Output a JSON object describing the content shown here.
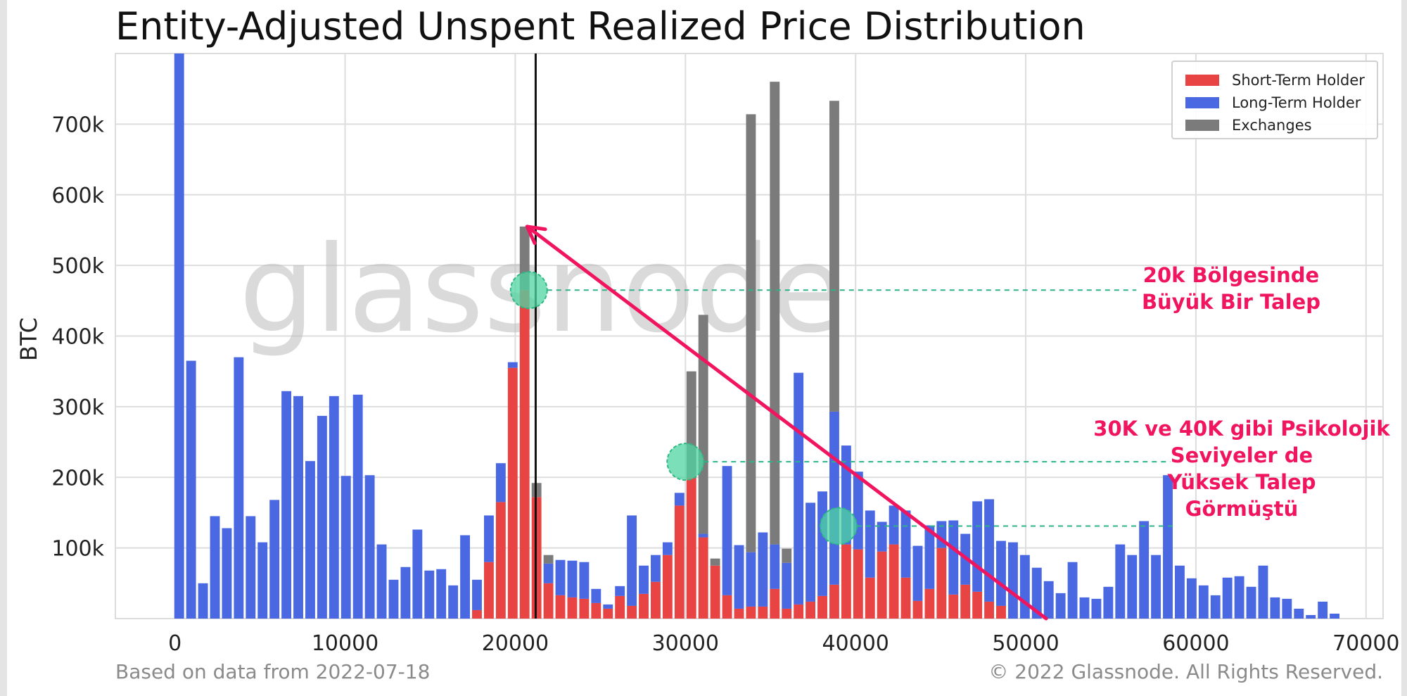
{
  "chart_data": {
    "type": "bar",
    "title": "Entity-Adjusted Unspent Realized Price Distribution",
    "xlabel": "",
    "ylabel": "BTC",
    "xlim": [
      -3500,
      71000
    ],
    "ylim": [
      0,
      800000
    ],
    "x_ticks": [
      0,
      10000,
      20000,
      30000,
      40000,
      50000,
      60000,
      70000
    ],
    "x_tick_labels": [
      "0",
      "10000",
      "20000",
      "30000",
      "40000",
      "50000",
      "60000",
      "70000"
    ],
    "y_ticks": [
      100000,
      200000,
      300000,
      400000,
      500000,
      600000,
      700000
    ],
    "y_tick_labels": [
      "100k",
      "200k",
      "300k",
      "400k",
      "500k",
      "600k",
      "700k"
    ],
    "grid": true,
    "bin_width": 700,
    "x": [
      250,
      950,
      1650,
      2350,
      3050,
      3750,
      4450,
      5150,
      5850,
      6550,
      7250,
      7950,
      8650,
      9350,
      10050,
      10750,
      11450,
      12150,
      12850,
      13550,
      14250,
      14950,
      15650,
      16350,
      17050,
      17750,
      18450,
      19150,
      19850,
      20550,
      21250,
      21950,
      22650,
      23350,
      24050,
      24750,
      25450,
      26150,
      26850,
      27550,
      28250,
      28950,
      29650,
      30350,
      31050,
      31750,
      32450,
      33150,
      33850,
      34550,
      35250,
      35950,
      36650,
      37350,
      38050,
      38750,
      39450,
      40150,
      40850,
      41550,
      42250,
      42950,
      43650,
      44350,
      45050,
      45750,
      46450,
      47150,
      47850,
      48550,
      49250,
      49950,
      50650,
      51350,
      52050,
      52750,
      53450,
      54150,
      54850,
      55550,
      56250,
      56950,
      57650,
      58350,
      59050,
      59750,
      60450,
      61150,
      61850,
      62550,
      63250,
      63950,
      64650,
      65350,
      66050,
      66750,
      67450,
      68150
    ],
    "series": [
      {
        "name": "Short-Term Holder",
        "color": "#e84444",
        "values": [
          0,
          0,
          0,
          0,
          0,
          0,
          0,
          0,
          0,
          0,
          0,
          0,
          0,
          0,
          0,
          0,
          0,
          0,
          0,
          0,
          0,
          0,
          0,
          0,
          0,
          12000,
          80000,
          165000,
          355000,
          465000,
          172000,
          50000,
          33000,
          30000,
          28000,
          22000,
          14000,
          32000,
          18000,
          35000,
          52000,
          90000,
          160000,
          200000,
          115000,
          75000,
          33000,
          14000,
          17000,
          17000,
          42000,
          14000,
          20000,
          24000,
          32000,
          48000,
          105000,
          98000,
          58000,
          95000,
          105000,
          58000,
          25000,
          42000,
          100000,
          34000,
          48000,
          38000,
          24000,
          18000,
          0,
          0,
          0,
          0,
          0,
          0,
          0,
          0,
          0,
          0,
          0,
          0,
          0,
          0,
          0,
          0,
          0,
          0,
          0,
          0,
          0,
          0,
          0,
          0,
          0,
          0,
          0,
          0
        ]
      },
      {
        "name": "Long-Term Holder",
        "color": "#4a68e2",
        "values": [
          800000,
          365000,
          50000,
          145000,
          128000,
          370000,
          145000,
          108000,
          168000,
          322000,
          315000,
          223000,
          287000,
          315000,
          202000,
          317000,
          203000,
          105000,
          55000,
          73000,
          126000,
          68000,
          70000,
          47000,
          118000,
          43000,
          66000,
          55000,
          8000,
          -8000,
          0,
          28000,
          50000,
          52000,
          52000,
          20000,
          6000,
          14000,
          128000,
          40000,
          38000,
          18000,
          18000,
          0,
          5000,
          0,
          183000,
          90000,
          77000,
          105000,
          63000,
          65000,
          328000,
          140000,
          148000,
          245000,
          140000,
          110000,
          95000,
          42000,
          55000,
          95000,
          78000,
          90000,
          38000,
          105000,
          72000,
          128000,
          145000,
          92000,
          108000,
          90000,
          72000,
          53000,
          36000,
          80000,
          30000,
          28000,
          45000,
          105000,
          90000,
          138000,
          90000,
          203000,
          75000,
          57000,
          47000,
          33000,
          58000,
          60000,
          45000,
          75000,
          30000,
          28000,
          14000,
          5000,
          24000,
          7000
        ]
      },
      {
        "name": "Exchanges",
        "color": "#7b7b7b",
        "values": [
          0,
          0,
          0,
          0,
          0,
          0,
          0,
          0,
          0,
          0,
          0,
          0,
          0,
          0,
          0,
          0,
          0,
          0,
          0,
          0,
          0,
          0,
          0,
          0,
          0,
          0,
          0,
          0,
          0,
          90000,
          20000,
          12000,
          0,
          0,
          0,
          0,
          0,
          0,
          0,
          0,
          0,
          0,
          0,
          150000,
          310000,
          10000,
          0,
          0,
          620000,
          0,
          655000,
          20000,
          0,
          0,
          0,
          440000,
          0,
          0,
          0,
          0,
          0,
          0,
          0,
          0,
          0,
          0,
          0,
          0,
          0,
          0,
          0,
          0,
          0,
          0,
          0,
          0,
          0,
          0,
          0,
          0,
          0,
          0,
          0,
          0,
          0,
          0,
          0,
          0,
          0,
          0,
          0,
          0,
          0,
          0,
          0,
          0,
          0,
          0
        ]
      }
    ],
    "vertical_line_x": 21200,
    "arrow": {
      "from": [
        51200,
        0
      ],
      "to": [
        20700,
        555000
      ]
    },
    "highlight_circles": [
      {
        "x": 20800,
        "y": 465000
      },
      {
        "x": 30000,
        "y": 222000
      },
      {
        "x": 39000,
        "y": 131000
      }
    ],
    "dashed_levels": [
      {
        "y": 465000,
        "x_end": 56500
      },
      {
        "y": 222000,
        "x_end": 58500
      },
      {
        "y": 131000,
        "x_end": 58800
      }
    ],
    "watermark": "glassnode",
    "annotations": [
      {
        "lines": [
          "20k Bölgesinde",
          "Büyük Bir Talep"
        ]
      },
      {
        "lines": [
          "30K ve 40K gibi Psikolojik",
          "Seviyeler de",
          "Yüksek Talep",
          "Görmüştü"
        ]
      }
    ]
  },
  "footer": {
    "left": "Based on data from 2022-07-18",
    "right": "© 2022 Glassnode. All Rights Reserved."
  },
  "colors": {
    "annotation": "#f0155e",
    "dashed": "#2db38a",
    "circle_fill": "#4fd6a2"
  }
}
